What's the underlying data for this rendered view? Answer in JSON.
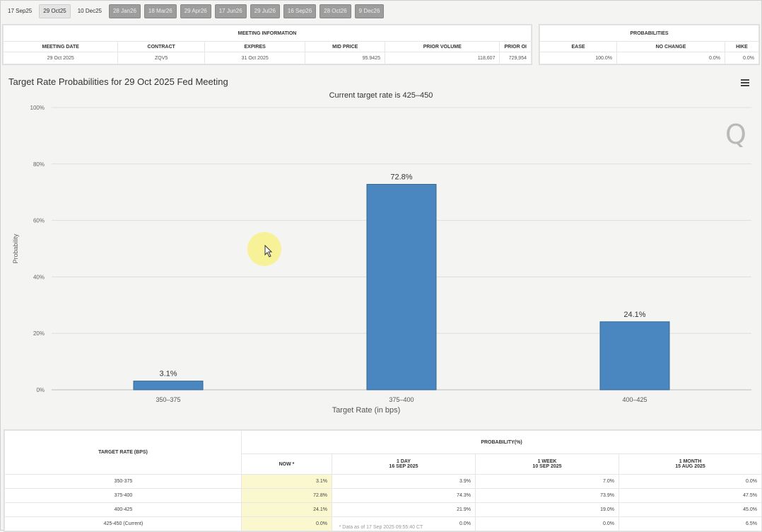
{
  "tabs": [
    {
      "label": "17 Sep25",
      "style": "plain"
    },
    {
      "label": "29 Oct25",
      "style": "active"
    },
    {
      "label": "10 Dec25",
      "style": "plain"
    },
    {
      "label": "28 Jan26",
      "style": "gray"
    },
    {
      "label": "18 Mar26",
      "style": "gray"
    },
    {
      "label": "29 Apr26",
      "style": "gray"
    },
    {
      "label": "17 Jun26",
      "style": "gray"
    },
    {
      "label": "29 Jul26",
      "style": "gray"
    },
    {
      "label": "16 Sep26",
      "style": "gray"
    },
    {
      "label": "28 Oct26",
      "style": "gray"
    },
    {
      "label": "9 Dec26",
      "style": "gray"
    }
  ],
  "meeting_info": {
    "header": "MEETING INFORMATION",
    "columns": [
      "MEETING DATE",
      "CONTRACT",
      "EXPIRES",
      "MID PRICE",
      "PRIOR VOLUME",
      "PRIOR OI"
    ],
    "row": [
      "29 Oct 2025",
      "ZQV5",
      "31 Oct 2025",
      "95.9425",
      "118,607",
      "729,954"
    ]
  },
  "probabilities": {
    "header": "PROBABILITIES",
    "columns": [
      "EASE",
      "NO CHANGE",
      "HIKE"
    ],
    "row": [
      "100.0%",
      "0.0%",
      "0.0%"
    ]
  },
  "chart": {
    "title": "Target Rate Probabilities for 29 Oct 2025 Fed Meeting",
    "subtitle": "Current target rate is 425–450",
    "watermark": "Q"
  },
  "chart_data": {
    "type": "bar",
    "title": "Target Rate Probabilities for 29 Oct 2025 Fed Meeting",
    "subtitle": "Current target rate is 425–450",
    "categories": [
      "350–375",
      "375–400",
      "400–425"
    ],
    "values": [
      3.1,
      72.8,
      24.1
    ],
    "value_labels": [
      "3.1%",
      "72.8%",
      "24.1%"
    ],
    "xlabel": "Target Rate (in bps)",
    "ylabel": "Probability",
    "ylim": [
      0,
      100
    ],
    "yticks": [
      0,
      20,
      40,
      60,
      80,
      100
    ],
    "ytick_labels": [
      "0%",
      "20%",
      "40%",
      "60%",
      "80%",
      "100%"
    ],
    "bar_color": "#4a86c0",
    "grid": true
  },
  "prob_table": {
    "rate_header": "TARGET RATE (BPS)",
    "prob_header": "PROBABILITY(%)",
    "columns": [
      {
        "line1": "NOW *",
        "line2": ""
      },
      {
        "line1": "1 DAY",
        "line2": "16 SEP 2025"
      },
      {
        "line1": "1 WEEK",
        "line2": "10 SEP 2025"
      },
      {
        "line1": "1 MONTH",
        "line2": "15 AUG 2025"
      }
    ],
    "rows": [
      {
        "rate": "350-375",
        "values": [
          "3.1%",
          "3.9%",
          "7.0%",
          "0.0%"
        ]
      },
      {
        "rate": "375-400",
        "values": [
          "72.8%",
          "74.3%",
          "73.9%",
          "47.5%"
        ]
      },
      {
        "rate": "400-425",
        "values": [
          "24.1%",
          "21.9%",
          "19.0%",
          "45.0%"
        ]
      },
      {
        "rate": "425-450 (Current)",
        "values": [
          "0.0%",
          "0.0%",
          "0.0%",
          "6.5%"
        ]
      }
    ]
  },
  "footnote": "* Data as of 17 Sep 2025 09:55:40 CT"
}
